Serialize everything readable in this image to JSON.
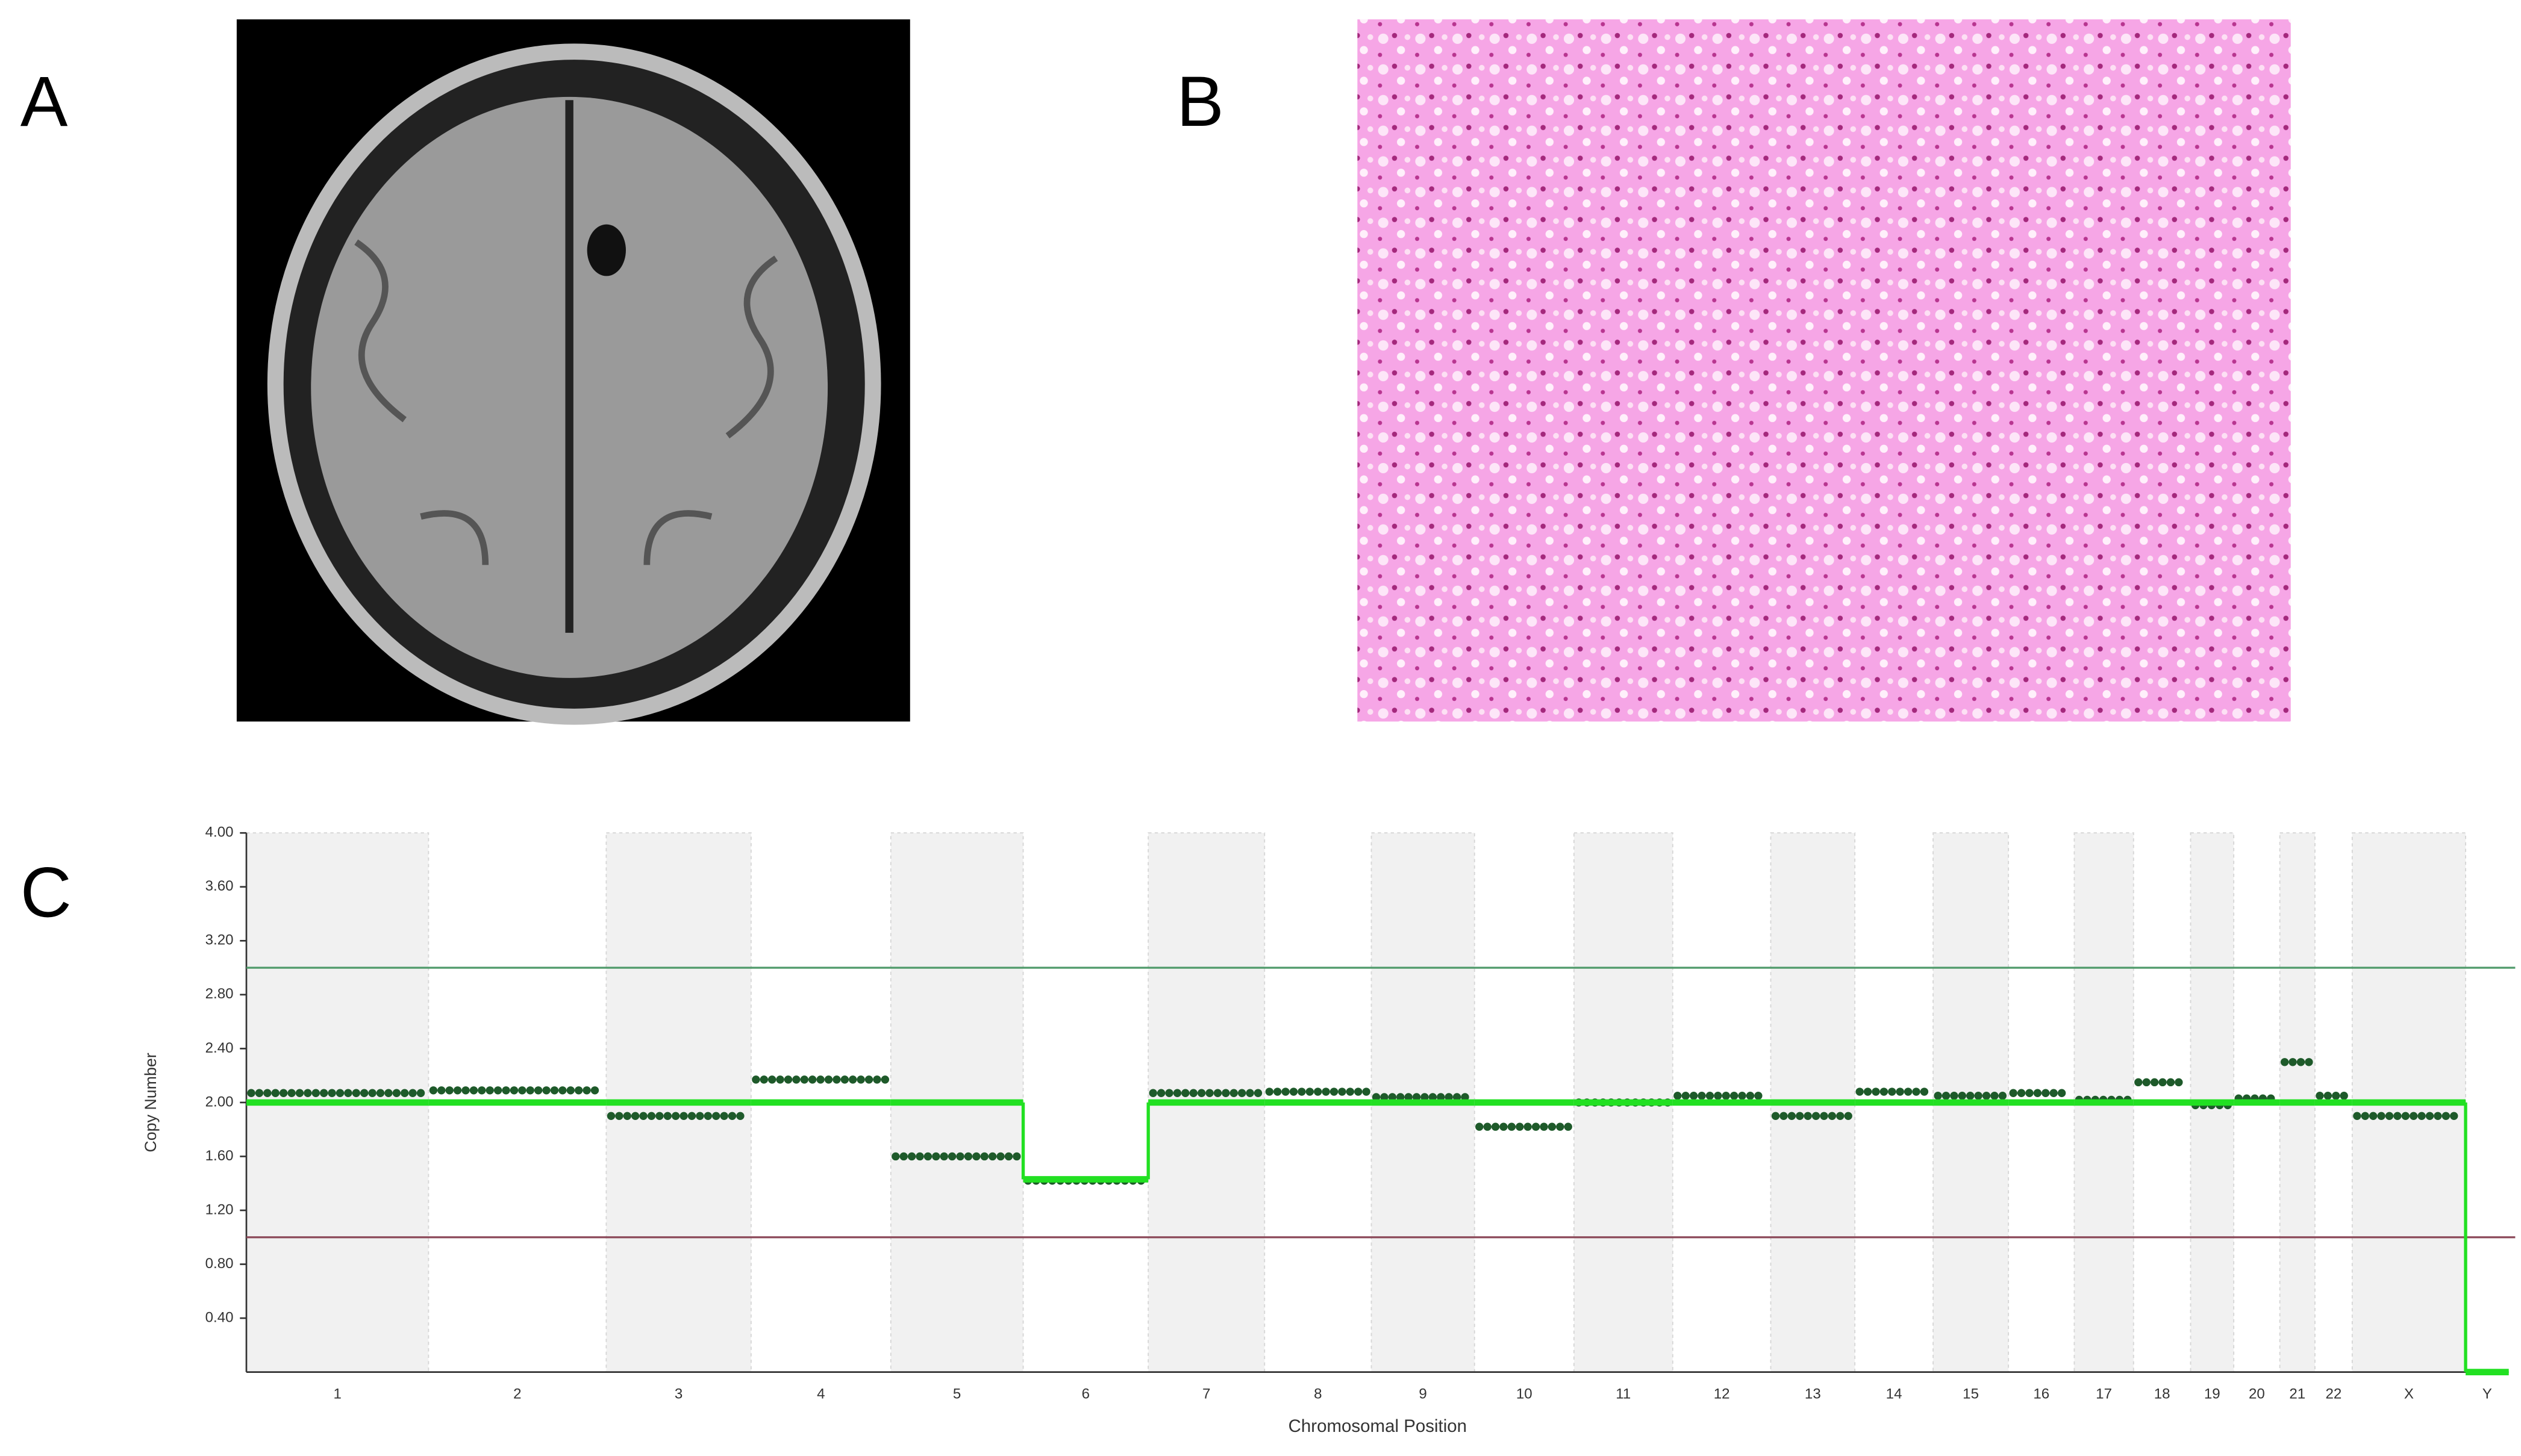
{
  "panels": {
    "a": "A",
    "b": "B",
    "c": "C"
  },
  "chart_data": {
    "type": "copy-number",
    "xlabel": "Chromosomal Position",
    "ylabel": "Copy Number",
    "categories": [
      "1",
      "2",
      "3",
      "4",
      "5",
      "6",
      "7",
      "8",
      "9",
      "10",
      "11",
      "12",
      "13",
      "14",
      "15",
      "16",
      "17",
      "18",
      "19",
      "20",
      "21",
      "22",
      "X",
      "Y"
    ],
    "lengths": [
      249,
      243,
      198,
      191,
      181,
      171,
      159,
      146,
      141,
      136,
      135,
      134,
      115,
      107,
      103,
      90,
      81,
      78,
      59,
      63,
      48,
      51,
      155,
      59
    ],
    "series": [
      {
        "color": "#1e5a2a",
        "values": [
          2.07,
          2.09,
          1.9,
          2.17,
          1.6,
          1.42,
          2.07,
          2.08,
          2.04,
          1.82,
          2.0,
          2.05,
          1.9,
          2.08,
          2.05,
          2.07,
          2.02,
          2.15,
          1.98,
          2.03,
          2.3,
          2.05,
          1.9,
          null
        ]
      },
      {
        "color": "#22e022",
        "values": [
          2,
          2,
          2,
          2,
          2,
          1.43,
          2,
          2,
          2,
          2,
          2,
          2,
          2,
          2,
          2,
          2,
          2,
          2,
          2,
          2,
          2,
          2,
          2,
          0
        ]
      }
    ],
    "reference_lines": [
      {
        "value": 3,
        "color": "#4f9a6a"
      },
      {
        "value": 1,
        "color": "#8c4a5a"
      }
    ],
    "ylim": [
      0,
      4
    ],
    "yticks": [
      {
        "value": 0.4,
        "label": "0.40"
      },
      {
        "value": 0.8,
        "label": "0.80"
      },
      {
        "value": 1.2,
        "label": "1.20"
      },
      {
        "value": 1.6,
        "label": "1.60"
      },
      {
        "value": 2,
        "label": "2.00"
      },
      {
        "value": 2.4,
        "label": "2.40"
      },
      {
        "value": 2.8,
        "label": "2.80"
      },
      {
        "value": 3.2,
        "label": "3.20"
      },
      {
        "value": 3.6,
        "label": "3.60"
      },
      {
        "value": 4,
        "label": "4.00"
      }
    ]
  }
}
